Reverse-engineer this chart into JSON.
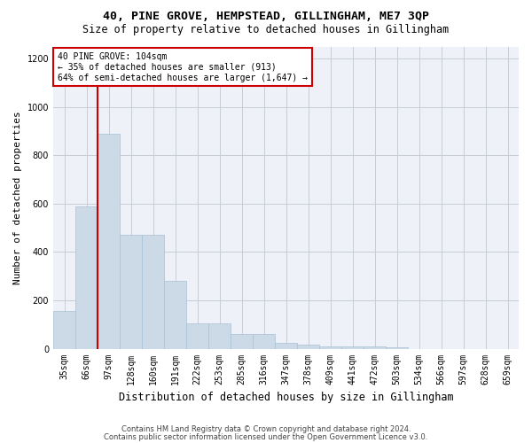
{
  "title": "40, PINE GROVE, HEMPSTEAD, GILLINGHAM, ME7 3QP",
  "subtitle": "Size of property relative to detached houses in Gillingham",
  "xlabel": "Distribution of detached houses by size in Gillingham",
  "ylabel": "Number of detached properties",
  "footer_line1": "Contains HM Land Registry data © Crown copyright and database right 2024.",
  "footer_line2": "Contains public sector information licensed under the Open Government Licence v3.0.",
  "annotation_title": "40 PINE GROVE: 104sqm",
  "annotation_line1": "← 35% of detached houses are smaller (913)",
  "annotation_line2": "64% of semi-detached houses are larger (1,647) →",
  "bar_color": "#ccdae8",
  "bar_edge_color": "#a8c0d4",
  "vline_color": "#cc0000",
  "annotation_box_edgecolor": "#cc0000",
  "categories": [
    "35sqm",
    "66sqm",
    "97sqm",
    "128sqm",
    "160sqm",
    "191sqm",
    "222sqm",
    "253sqm",
    "285sqm",
    "316sqm",
    "347sqm",
    "378sqm",
    "409sqm",
    "441sqm",
    "472sqm",
    "503sqm",
    "534sqm",
    "566sqm",
    "597sqm",
    "628sqm",
    "659sqm"
  ],
  "values": [
    155,
    590,
    890,
    470,
    470,
    280,
    105,
    105,
    60,
    60,
    25,
    15,
    10,
    10,
    10,
    5,
    0,
    0,
    0,
    0,
    0
  ],
  "vline_x_index": 1.5,
  "ylim": [
    0,
    1250
  ],
  "yticks": [
    0,
    200,
    400,
    600,
    800,
    1000,
    1200
  ],
  "grid_color": "#c8ccd8",
  "background_color": "#eef2f8",
  "title_fontsize": 9.5,
  "subtitle_fontsize": 8.5,
  "ylabel_fontsize": 8,
  "xlabel_fontsize": 8.5,
  "tick_fontsize": 7,
  "annotation_fontsize": 7,
  "footer_fontsize": 6
}
